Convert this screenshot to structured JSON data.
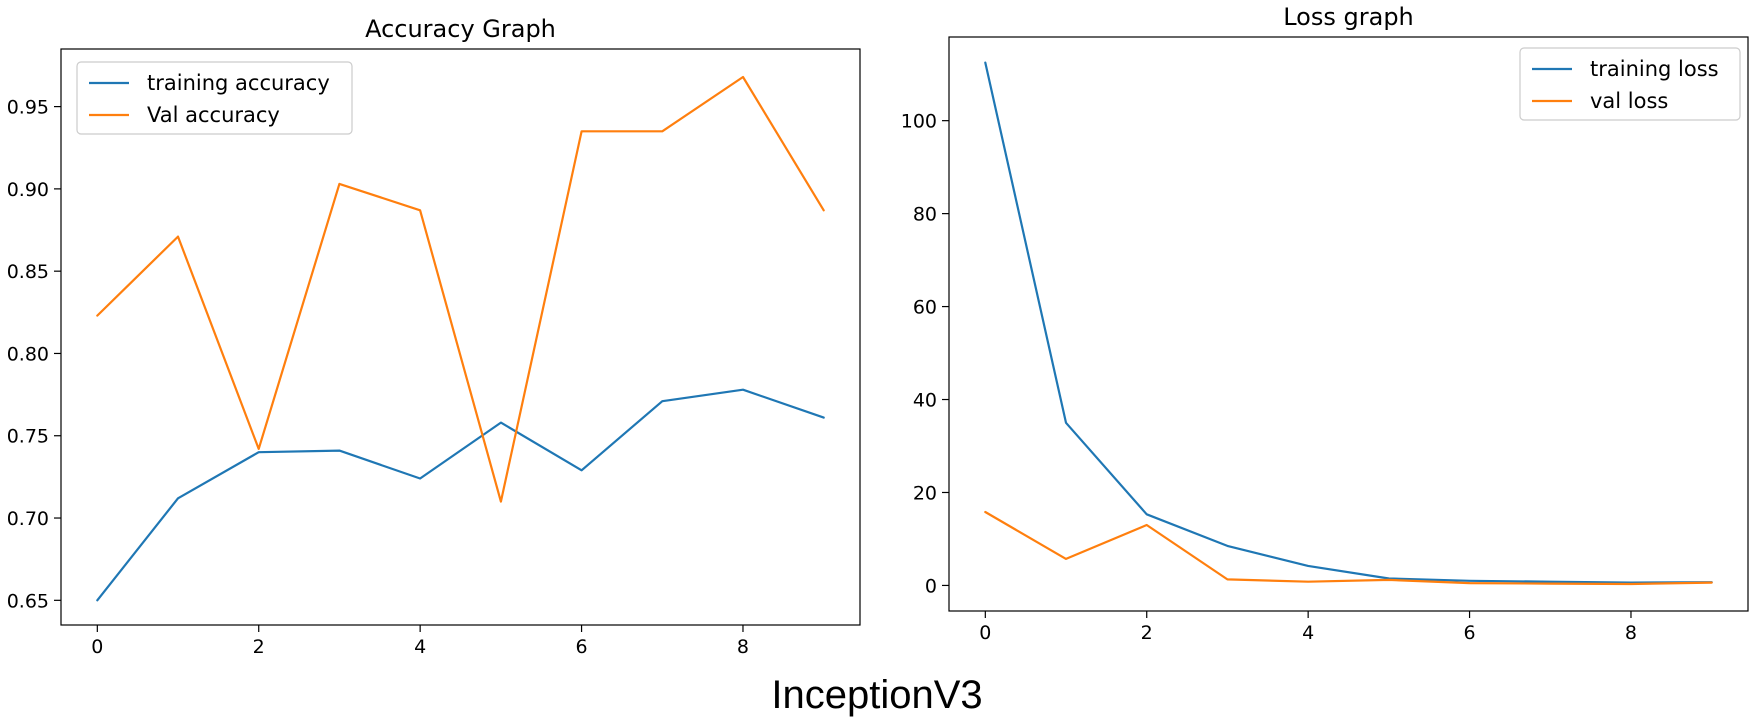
{
  "figure": {
    "caption": "InceptionV3"
  },
  "chart_data": [
    {
      "type": "line",
      "title": "Accuracy Graph",
      "xlabel": "",
      "ylabel": "",
      "xlim": [
        -0.45,
        9.45
      ],
      "ylim": [
        0.635,
        0.985
      ],
      "xticks": [
        0,
        2,
        4,
        6,
        8
      ],
      "xtick_labels": [
        "0",
        "2",
        "4",
        "6",
        "8"
      ],
      "yticks": [
        0.65,
        0.7,
        0.75,
        0.8,
        0.85,
        0.9,
        0.95
      ],
      "ytick_labels": [
        "0.65",
        "0.70",
        "0.75",
        "0.80",
        "0.85",
        "0.90",
        "0.95"
      ],
      "grid": false,
      "legend_position": "upper-left",
      "x": [
        0,
        1,
        2,
        3,
        4,
        5,
        6,
        7,
        8,
        9
      ],
      "series": [
        {
          "name": "training accuracy",
          "color": "#1f77b4",
          "values": [
            0.65,
            0.712,
            0.74,
            0.741,
            0.724,
            0.758,
            0.729,
            0.771,
            0.778,
            0.761
          ]
        },
        {
          "name": "Val accuracy",
          "color": "#ff7f0e",
          "values": [
            0.823,
            0.871,
            0.742,
            0.903,
            0.887,
            0.71,
            0.935,
            0.935,
            0.968,
            0.887
          ]
        }
      ]
    },
    {
      "type": "line",
      "title": "Loss graph",
      "xlabel": "",
      "ylabel": "",
      "xlim": [
        -0.45,
        9.45
      ],
      "ylim": [
        -5.5,
        118
      ],
      "xticks": [
        0,
        2,
        4,
        6,
        8
      ],
      "xtick_labels": [
        "0",
        "2",
        "4",
        "6",
        "8"
      ],
      "yticks": [
        0,
        20,
        40,
        60,
        80,
        100
      ],
      "ytick_labels": [
        "0",
        "20",
        "40",
        "60",
        "80",
        "100"
      ],
      "grid": false,
      "legend_position": "upper-right",
      "x": [
        0,
        1,
        2,
        3,
        4,
        5,
        6,
        7,
        8,
        9
      ],
      "series": [
        {
          "name": "training loss",
          "color": "#1f77b4",
          "values": [
            112.5,
            35.0,
            15.3,
            8.5,
            4.2,
            1.5,
            1.0,
            0.8,
            0.6,
            0.7
          ]
        },
        {
          "name": "val loss",
          "color": "#ff7f0e",
          "values": [
            15.8,
            5.7,
            13.0,
            1.3,
            0.8,
            1.2,
            0.5,
            0.4,
            0.3,
            0.6
          ]
        }
      ]
    }
  ]
}
